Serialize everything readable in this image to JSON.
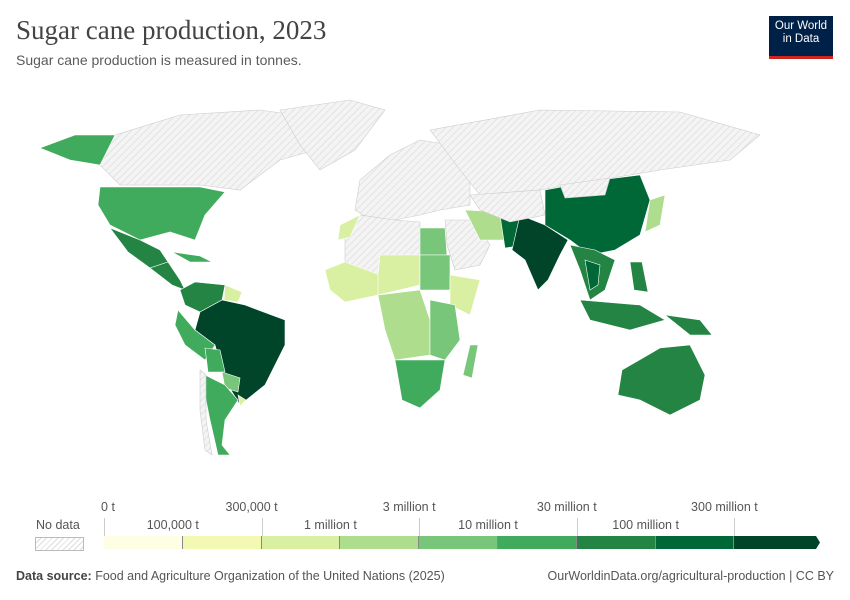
{
  "title": "Sugar cane production, 2023",
  "subtitle": "Sugar cane production is measured in tonnes.",
  "logo": {
    "line1": "Our World",
    "line2": "in Data"
  },
  "legend": {
    "no_data_label": "No data",
    "top_labels": [
      "0 t",
      "300,000 t",
      "3 million t",
      "30 million t",
      "300 million t"
    ],
    "bottom_labels": [
      "100,000 t",
      "1 million t",
      "10 million t",
      "100 million t"
    ],
    "bins": [
      "#fefee4",
      "#f3f8b3",
      "#d9efa1",
      "#aedd8e",
      "#78c679",
      "#41ab5d",
      "#238443",
      "#006837",
      "#004529"
    ]
  },
  "map": {
    "no_data_color": "#eeeeee",
    "regions": [
      {
        "name": "canada",
        "c": "nd"
      },
      {
        "name": "alaska",
        "c": 5
      },
      {
        "name": "usa",
        "c": 5
      },
      {
        "name": "mexico",
        "c": 6
      },
      {
        "name": "central-america",
        "c": 6
      },
      {
        "name": "caribbean",
        "c": 5
      },
      {
        "name": "colombia-venezuela",
        "c": 6
      },
      {
        "name": "guianas",
        "c": 2
      },
      {
        "name": "brazil",
        "c": 8
      },
      {
        "name": "peru",
        "c": 5
      },
      {
        "name": "bolivia",
        "c": 5
      },
      {
        "name": "paraguay",
        "c": 4
      },
      {
        "name": "argentina",
        "c": 5
      },
      {
        "name": "chile",
        "c": "nd"
      },
      {
        "name": "uruguay",
        "c": 2
      },
      {
        "name": "greenland",
        "c": "nd"
      },
      {
        "name": "europe",
        "c": "nd"
      },
      {
        "name": "russia",
        "c": "nd"
      },
      {
        "name": "north-africa",
        "c": "nd"
      },
      {
        "name": "morocco",
        "c": 2
      },
      {
        "name": "egypt",
        "c": 4
      },
      {
        "name": "west-africa",
        "c": 2
      },
      {
        "name": "sahel",
        "c": 2
      },
      {
        "name": "sudan",
        "c": 4
      },
      {
        "name": "ethiopia",
        "c": 2
      },
      {
        "name": "central-africa",
        "c": 3
      },
      {
        "name": "east-africa",
        "c": 4
      },
      {
        "name": "southern-africa",
        "c": 5
      },
      {
        "name": "madagascar",
        "c": 4
      },
      {
        "name": "middle-east",
        "c": "nd"
      },
      {
        "name": "iran",
        "c": 3
      },
      {
        "name": "pakistan",
        "c": 7
      },
      {
        "name": "india",
        "c": 8
      },
      {
        "name": "china",
        "c": 7
      },
      {
        "name": "mongolia",
        "c": "nd"
      },
      {
        "name": "southeast-asia",
        "c": 6
      },
      {
        "name": "thailand",
        "c": 7
      },
      {
        "name": "philippines",
        "c": 6
      },
      {
        "name": "indonesia",
        "c": 6
      },
      {
        "name": "papua",
        "c": 6
      },
      {
        "name": "japan",
        "c": 3
      },
      {
        "name": "australia",
        "c": 6
      },
      {
        "name": "central-asia",
        "c": "nd"
      }
    ]
  },
  "footer": {
    "source_label": "Data source:",
    "source": "Food and Agriculture Organization of the United Nations (2025)",
    "url": "OurWorldinData.org/agricultural-production | CC BY"
  }
}
